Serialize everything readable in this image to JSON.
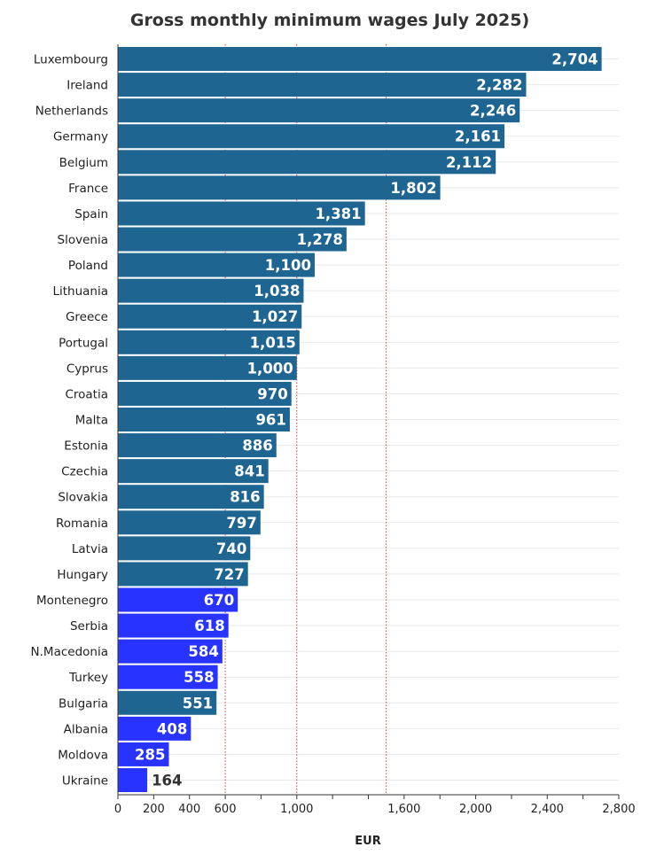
{
  "chart_data": {
    "type": "bar",
    "orientation": "horizontal",
    "title": "Gross monthly minimum wages July 2025)",
    "xlabel": "EUR",
    "ylabel": "",
    "xlim": [
      0,
      2800
    ],
    "x_ticks": [
      0,
      200,
      400,
      600,
      1000,
      1600,
      2000,
      2400,
      2800
    ],
    "x_tick_labels": [
      "0",
      "200",
      "400",
      "600",
      "1,000",
      "1,600",
      "2,000",
      "2,400",
      "2,800"
    ],
    "reference_lines": [
      600,
      1000,
      1500
    ],
    "grid": "horizontal",
    "colors": {
      "eu": "#1f6591",
      "non_eu": "#2833ff"
    },
    "categories": [
      "Luxembourg",
      "Ireland",
      "Netherlands",
      "Germany",
      "Belgium",
      "France",
      "Spain",
      "Slovenia",
      "Poland",
      "Lithuania",
      "Greece",
      "Portugal",
      "Cyprus",
      "Croatia",
      "Malta",
      "Estonia",
      "Czechia",
      "Slovakia",
      "Romania",
      "Latvia",
      "Hungary",
      "Montenegro",
      "Serbia",
      "N.Macedonia",
      "Turkey",
      "Bulgaria",
      "Albania",
      "Moldova",
      "Ukraine"
    ],
    "values": [
      2704,
      2282,
      2246,
      2161,
      2112,
      1802,
      1381,
      1278,
      1100,
      1038,
      1027,
      1015,
      1000,
      970,
      961,
      886,
      841,
      816,
      797,
      740,
      727,
      670,
      618,
      584,
      558,
      551,
      408,
      285,
      164
    ],
    "value_labels": [
      "2,704",
      "2,282",
      "2,246",
      "2,161",
      "2,112",
      "1,802",
      "1,381",
      "1,278",
      "1,100",
      "1,038",
      "1,027",
      "1,015",
      "1,000",
      "970",
      "961",
      "886",
      "841",
      "816",
      "797",
      "740",
      "727",
      "670",
      "618",
      "584",
      "558",
      "551",
      "408",
      "285",
      "164"
    ],
    "groups": [
      "eu",
      "eu",
      "eu",
      "eu",
      "eu",
      "eu",
      "eu",
      "eu",
      "eu",
      "eu",
      "eu",
      "eu",
      "eu",
      "eu",
      "eu",
      "eu",
      "eu",
      "eu",
      "eu",
      "eu",
      "eu",
      "non_eu",
      "non_eu",
      "non_eu",
      "non_eu",
      "eu",
      "non_eu",
      "non_eu",
      "non_eu"
    ]
  }
}
